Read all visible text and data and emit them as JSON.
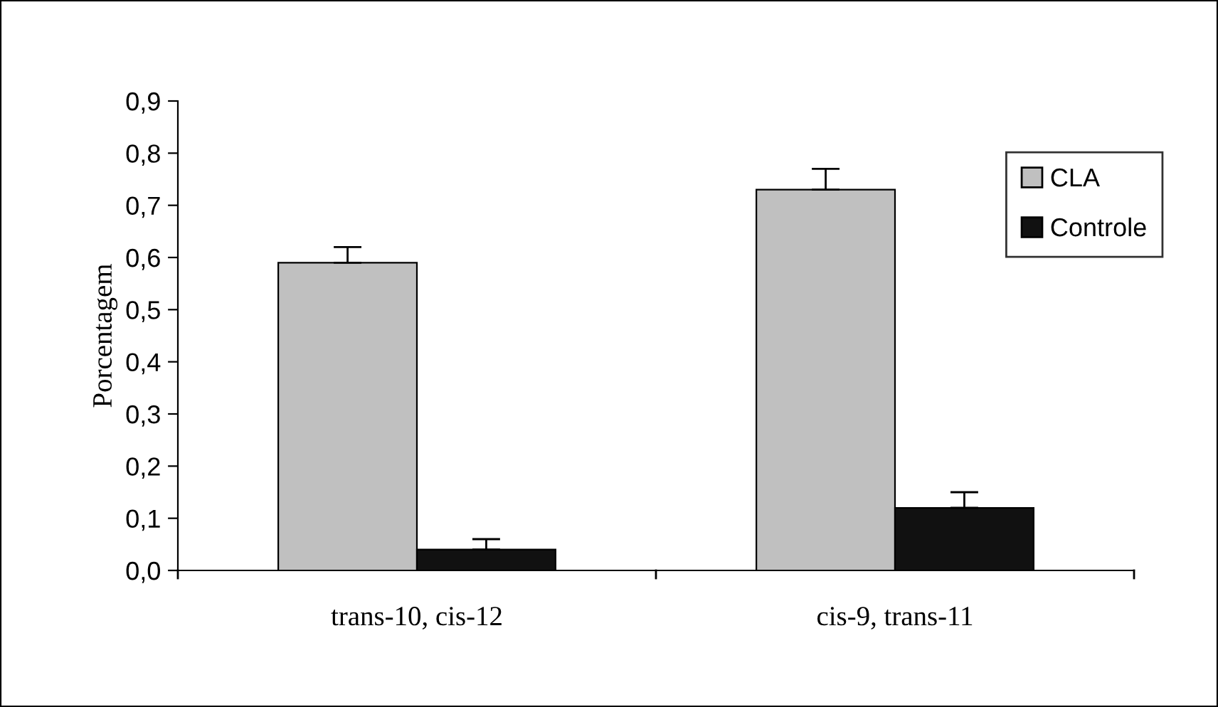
{
  "chart_data": {
    "type": "bar",
    "ylabel": "Porcentagem",
    "categories": [
      "trans-10, cis-12",
      "cis-9, trans-11"
    ],
    "series": [
      {
        "name": "CLA",
        "color": "#c0c0c0",
        "values": [
          0.59,
          0.73
        ],
        "errors": [
          [
            0.59,
            0.62
          ],
          [
            0.73,
            0.77
          ]
        ]
      },
      {
        "name": "Controle",
        "color": "#111111",
        "values": [
          0.04,
          0.12
        ],
        "errors": [
          [
            0.04,
            0.06
          ],
          [
            0.12,
            0.15
          ]
        ]
      }
    ],
    "ylim": [
      0,
      0.9
    ],
    "yticks": [
      {
        "value": 0,
        "label": "0,0"
      },
      {
        "value": 0.1,
        "label": "0,1"
      },
      {
        "value": 0.2,
        "label": "0,2"
      },
      {
        "value": 0.3,
        "label": "0,3"
      },
      {
        "value": 0.4,
        "label": "0,4"
      },
      {
        "value": 0.5,
        "label": "0,5"
      },
      {
        "value": 0.6,
        "label": "0,6"
      },
      {
        "value": 0.7,
        "label": "0,7"
      },
      {
        "value": 0.8,
        "label": "0,8"
      },
      {
        "value": 0.9,
        "label": "0,9"
      }
    ],
    "grid": false,
    "legend": "top right"
  }
}
